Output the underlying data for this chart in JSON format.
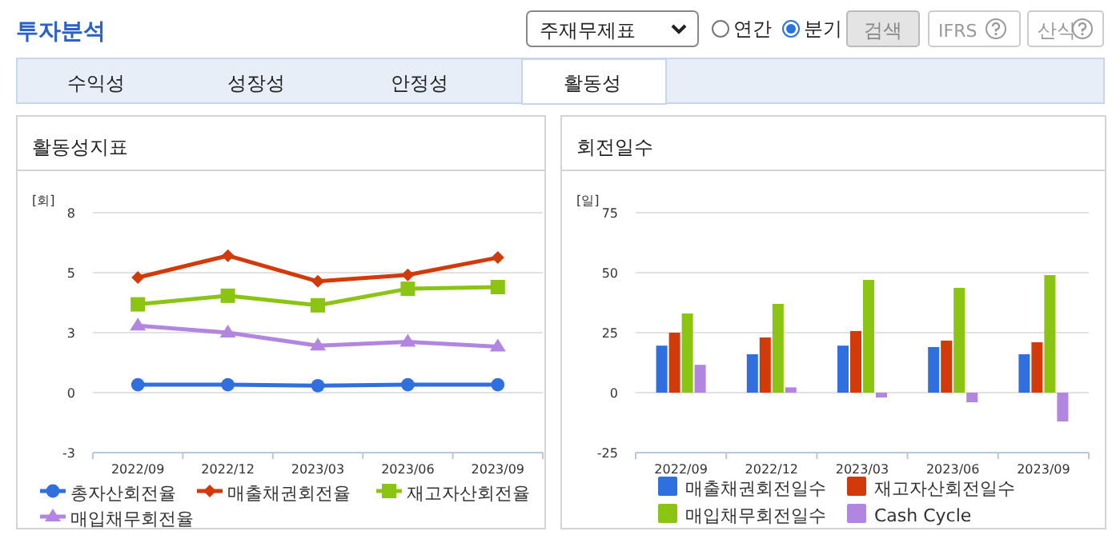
{
  "chart_data": [
    {
      "type": "other",
      "title": "투자분석",
      "annotations": [
        "주재무제표",
        "연간",
        "분기",
        "검색",
        "IFRS",
        "산식",
        "수익성",
        "성장성",
        "안정성",
        "활동성"
      ]
    },
    {
      "type": "line",
      "title": "활동성지표",
      "ylabel": "[회]",
      "categories": [
        "2022/09",
        "2022/12",
        "2023/03",
        "2023/06",
        "2023/09"
      ],
      "ylim": [
        -2.5,
        7.5
      ],
      "yticks": [
        {
          "value": -2.5,
          "label": "-3"
        },
        0,
        {
          "value": 2.5,
          "label": "3"
        },
        5,
        {
          "value": 7.5,
          "label": "8"
        }
      ],
      "grid": "y",
      "legend": "bottom",
      "series": [
        {
          "name": "총자산회전율",
          "color": "#2f6fde",
          "marker": "circle",
          "values": [
            0.33,
            0.33,
            0.29,
            0.33,
            0.33
          ]
        },
        {
          "name": "매출채권회전율",
          "color": "#d23a0a",
          "marker": "diamond",
          "values": [
            4.8,
            5.71,
            4.64,
            4.91,
            5.63
          ]
        },
        {
          "name": "재고자산회전율",
          "color": "#8cc414",
          "marker": "square",
          "values": [
            3.68,
            4.04,
            3.64,
            4.33,
            4.4
          ]
        },
        {
          "name": "매입채무회전율",
          "color": "#b285e0",
          "marker": "triangle",
          "values": [
            2.79,
            2.5,
            1.96,
            2.12,
            1.92
          ]
        }
      ]
    },
    {
      "type": "bar",
      "title": "회전일수",
      "ylabel": "[일]",
      "categories": [
        "2022/09",
        "2022/12",
        "2023/03",
        "2023/06",
        "2023/09"
      ],
      "ylim": [
        -25,
        75
      ],
      "yticks": [
        -25,
        0,
        25,
        50,
        75
      ],
      "grid": "y",
      "legend": "bottom",
      "series": [
        {
          "name": "매출채권회전일수",
          "color": "#2f6fde",
          "values": [
            19.6,
            16,
            19.6,
            19,
            16
          ]
        },
        {
          "name": "재고자산회전일수",
          "color": "#d23a0a",
          "values": [
            25,
            23,
            25.7,
            21.7,
            21
          ]
        },
        {
          "name": "매입채무회전일수",
          "color": "#8cc414",
          "values": [
            33,
            37,
            47,
            43.7,
            49
          ]
        },
        {
          "name": "Cash Cycle",
          "color": "#b285e0",
          "values": [
            11.6,
            2.2,
            -2,
            -4,
            -12
          ]
        }
      ]
    }
  ]
}
